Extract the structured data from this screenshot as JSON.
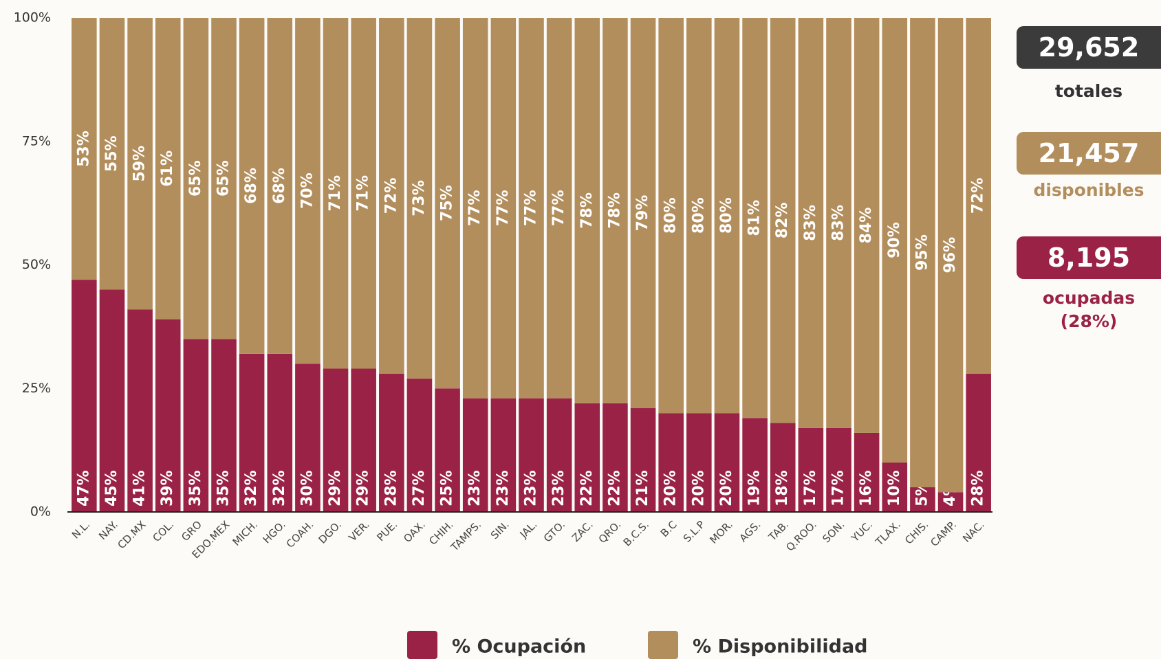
{
  "chart_data": {
    "type": "stacked-bar",
    "categories": [
      "N.L.",
      "NAY.",
      "CD.MX",
      "COL.",
      "GRO",
      "EDO.MEX",
      "MICH.",
      "HGO.",
      "COAH.",
      "DGO.",
      "VER.",
      "PUE.",
      "OAX.",
      "CHIH.",
      "TAMPS.",
      "SIN.",
      "JAL.",
      "GTO.",
      "ZAC.",
      "QRO.",
      "B.C.S.",
      "B.C",
      "S.L.P",
      "MOR.",
      "AGS.",
      "TAB.",
      "Q.ROO.",
      "SON.",
      "YUC.",
      "TLAX.",
      "CHIS.",
      "CAMP.",
      "NAC."
    ],
    "series": [
      {
        "name": "% Ocupación",
        "color": "#9b2247",
        "values": [
          47,
          45,
          41,
          39,
          35,
          35,
          32,
          32,
          30,
          29,
          29,
          28,
          27,
          25,
          23,
          23,
          23,
          23,
          22,
          22,
          21,
          20,
          20,
          20,
          19,
          18,
          17,
          17,
          16,
          10,
          5,
          4,
          28
        ],
        "value_labels": [
          "47%",
          "45%",
          "41%",
          "39%",
          "35%",
          "35%",
          "32%",
          "32%",
          "30%",
          "29%",
          "29%",
          "28%",
          "27%",
          "25%",
          "23%",
          "23%",
          "23%",
          "23%",
          "22%",
          "22%",
          "21%",
          "20%",
          "20%",
          "20%",
          "19%",
          "18%",
          "17%",
          "17%",
          "16%",
          "10%",
          "5%",
          "4%",
          "28%"
        ]
      },
      {
        "name": "% Disponibilidad",
        "color": "#b38e5d",
        "values": [
          53,
          55,
          59,
          61,
          65,
          65,
          68,
          68,
          70,
          71,
          71,
          72,
          73,
          75,
          77,
          77,
          77,
          77,
          78,
          78,
          79,
          80,
          80,
          80,
          81,
          82,
          83,
          83,
          84,
          90,
          95,
          96,
          72
        ],
        "value_labels": [
          "53%",
          "55%",
          "59%",
          "61%",
          "65%",
          "65%",
          "68%",
          "68%",
          "70%",
          "71%",
          "71%",
          "72%",
          "73%",
          "75%",
          "77%",
          "77%",
          "77%",
          "77%",
          "78%",
          "78%",
          "79%",
          "80%",
          "80%",
          "80%",
          "81%",
          "82%",
          "83%",
          "83%",
          "84%",
          "90%",
          "95%",
          "96%",
          "72%"
        ]
      }
    ],
    "ylim": [
      0,
      100
    ],
    "yticks": [
      {
        "value": 0,
        "label": "0%"
      },
      {
        "value": 25,
        "label": "25%"
      },
      {
        "value": 50,
        "label": "50%"
      },
      {
        "value": 75,
        "label": "75%"
      },
      {
        "value": 100,
        "label": "100%"
      }
    ],
    "grid": false,
    "legend": "bottom"
  },
  "summary": {
    "total": {
      "value": "29,652",
      "label": "totales"
    },
    "available": {
      "value": "21,457",
      "label": "disponibles"
    },
    "occupied": {
      "value": "8,195",
      "label": "ocupadas",
      "share": "(28%)"
    }
  }
}
